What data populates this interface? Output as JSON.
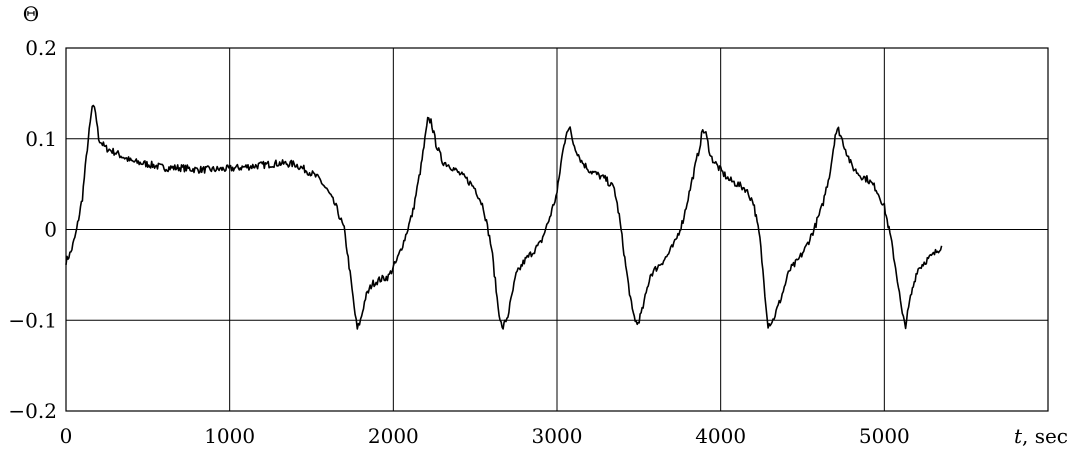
{
  "chart_data": {
    "type": "line",
    "title": "",
    "ylabel": "Θ",
    "xlabel_var": "t",
    "xlabel_unit": ", sec",
    "xlim": [
      0,
      6000
    ],
    "ylim": [
      -0.2,
      0.2
    ],
    "xticks": [
      0,
      1000,
      2000,
      3000,
      4000,
      5000
    ],
    "xtick_labels": [
      "0",
      "1000",
      "2000",
      "3000",
      "4000",
      "5000"
    ],
    "yticks": [
      -0.2,
      -0.1,
      0,
      0.1,
      0.2
    ],
    "ytick_labels": [
      "−0.2",
      "−0.1",
      "0",
      "0.1",
      "0.2"
    ],
    "grid": true,
    "series": [
      {
        "color": "#000000",
        "x": [
          0,
          30,
          60,
          100,
          130,
          160,
          180,
          200,
          240,
          300,
          400,
          500,
          600,
          700,
          800,
          900,
          1000,
          1100,
          1200,
          1300,
          1400,
          1500,
          1550,
          1600,
          1650,
          1700,
          1730,
          1760,
          1780,
          1800,
          1830,
          1870,
          1920,
          1970,
          2020,
          2070,
          2120,
          2170,
          2210,
          2230,
          2260,
          2300,
          2350,
          2400,
          2450,
          2500,
          2550,
          2600,
          2640,
          2665,
          2700,
          2750,
          2800,
          2850,
          2900,
          2950,
          3000,
          3030,
          3060,
          3080,
          3100,
          3150,
          3200,
          3250,
          3300,
          3350,
          3380,
          3420,
          3460,
          3490,
          3520,
          3570,
          3620,
          3670,
          3720,
          3770,
          3820,
          3870,
          3890,
          3910,
          3940,
          4000,
          4050,
          4100,
          4150,
          4200,
          4240,
          4270,
          4290,
          4320,
          4370,
          4420,
          4470,
          4520,
          4570,
          4620,
          4670,
          4700,
          4720,
          4750,
          4800,
          4850,
          4900,
          4950,
          5000,
          5040,
          5080,
          5110,
          5130,
          5160,
          5200,
          5250,
          5300,
          5350
        ],
        "y": [
          -0.035,
          -0.025,
          -0.005,
          0.035,
          0.09,
          0.135,
          0.13,
          0.1,
          0.09,
          0.085,
          0.075,
          0.072,
          0.068,
          0.068,
          0.066,
          0.066,
          0.067,
          0.069,
          0.071,
          0.073,
          0.072,
          0.062,
          0.055,
          0.042,
          0.025,
          0.0,
          -0.04,
          -0.085,
          -0.11,
          -0.1,
          -0.075,
          -0.06,
          -0.055,
          -0.052,
          -0.035,
          -0.01,
          0.02,
          0.07,
          0.12,
          0.12,
          0.095,
          0.075,
          0.07,
          0.062,
          0.055,
          0.045,
          0.025,
          -0.02,
          -0.085,
          -0.11,
          -0.095,
          -0.05,
          -0.035,
          -0.025,
          -0.015,
          0.01,
          0.04,
          0.08,
          0.11,
          0.11,
          0.095,
          0.075,
          0.065,
          0.06,
          0.055,
          0.045,
          0.015,
          -0.04,
          -0.09,
          -0.105,
          -0.09,
          -0.05,
          -0.04,
          -0.03,
          -0.015,
          0.01,
          0.05,
          0.09,
          0.11,
          0.105,
          0.08,
          0.065,
          0.055,
          0.05,
          0.045,
          0.03,
          -0.01,
          -0.07,
          -0.105,
          -0.1,
          -0.075,
          -0.045,
          -0.035,
          -0.02,
          0.0,
          0.025,
          0.065,
          0.105,
          0.11,
          0.095,
          0.07,
          0.06,
          0.055,
          0.045,
          0.025,
          -0.01,
          -0.055,
          -0.095,
          -0.105,
          -0.075,
          -0.045,
          -0.035,
          -0.028,
          -0.018
        ]
      }
    ]
  }
}
